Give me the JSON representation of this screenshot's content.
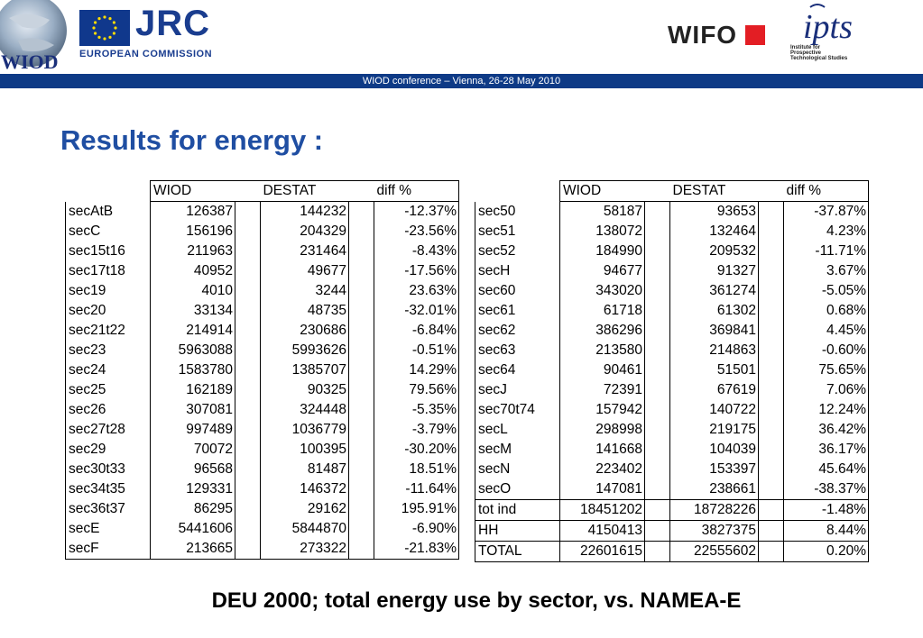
{
  "header": {
    "wiod_logo_text": "WIOD",
    "jrc": "JRC",
    "european_commission": "EUROPEAN COMMISSION",
    "wifo": "WIFO",
    "ipts": "ipts",
    "ipts_subtitle": "Institute for\nProspective\nTechnological Studies",
    "conference": "WIOD conference – Vienna, 26-28 May 2010"
  },
  "title": "Results for energy :",
  "columns": [
    "WIOD",
    "DESTAT",
    "diff %"
  ],
  "left_table": {
    "rows": [
      [
        "secAtB",
        "126387",
        "144232",
        "-12.37%"
      ],
      [
        "secC",
        "156196",
        "204329",
        "-23.56%"
      ],
      [
        "sec15t16",
        "211963",
        "231464",
        "-8.43%"
      ],
      [
        "sec17t18",
        "40952",
        "49677",
        "-17.56%"
      ],
      [
        "sec19",
        "4010",
        "3244",
        "23.63%"
      ],
      [
        "sec20",
        "33134",
        "48735",
        "-32.01%"
      ],
      [
        "sec21t22",
        "214914",
        "230686",
        "-6.84%"
      ],
      [
        "sec23",
        "5963088",
        "5993626",
        "-0.51%"
      ],
      [
        "sec24",
        "1583780",
        "1385707",
        "14.29%"
      ],
      [
        "sec25",
        "162189",
        "90325",
        "79.56%"
      ],
      [
        "sec26",
        "307081",
        "324448",
        "-5.35%"
      ],
      [
        "sec27t28",
        "997489",
        "1036779",
        "-3.79%"
      ],
      [
        "sec29",
        "70072",
        "100395",
        "-30.20%"
      ],
      [
        "sec30t33",
        "96568",
        "81487",
        "18.51%"
      ],
      [
        "sec34t35",
        "129331",
        "146372",
        "-11.64%"
      ],
      [
        "sec36t37",
        "86295",
        "29162",
        "195.91%"
      ],
      [
        "secE",
        "5441606",
        "5844870",
        "-6.90%"
      ],
      [
        "secF",
        "213665",
        "273322",
        "-21.83%"
      ]
    ]
  },
  "right_table": {
    "rows": [
      [
        "sec50",
        "58187",
        "93653",
        "-37.87%"
      ],
      [
        "sec51",
        "138072",
        "132464",
        "4.23%"
      ],
      [
        "sec52",
        "184990",
        "209532",
        "-11.71%"
      ],
      [
        "secH",
        "94677",
        "91327",
        "3.67%"
      ],
      [
        "sec60",
        "343020",
        "361274",
        "-5.05%"
      ],
      [
        "sec61",
        "61718",
        "61302",
        "0.68%"
      ],
      [
        "sec62",
        "386296",
        "369841",
        "4.45%"
      ],
      [
        "sec63",
        "213580",
        "214863",
        "-0.60%"
      ],
      [
        "sec64",
        "90461",
        "51501",
        "75.65%"
      ],
      [
        "secJ",
        "72391",
        "67619",
        "7.06%"
      ],
      [
        "sec70t74",
        "157942",
        "140722",
        "12.24%"
      ],
      [
        "secL",
        "298998",
        "219175",
        "36.42%"
      ],
      [
        "secM",
        "141668",
        "104039",
        "36.17%"
      ],
      [
        "secN",
        "223402",
        "153397",
        "45.64%"
      ],
      [
        "secO",
        "147081",
        "238661",
        "-38.37%"
      ]
    ],
    "total_rows": [
      [
        "tot ind",
        "18451202",
        "18728226",
        "-1.48%"
      ],
      [
        "HH",
        "4150413",
        "3827375",
        "8.44%"
      ],
      [
        "TOTAL",
        "22601615",
        "22555602",
        "0.20%"
      ]
    ]
  },
  "caption": "DEU 2000; total energy use by sector, vs. NAMEA-E",
  "colors": {
    "title_blue": "#1f4ea2",
    "bar_blue": "#0e3a86",
    "jrc_blue": "#1a3d8f",
    "wifo_red": "#e31e24"
  }
}
